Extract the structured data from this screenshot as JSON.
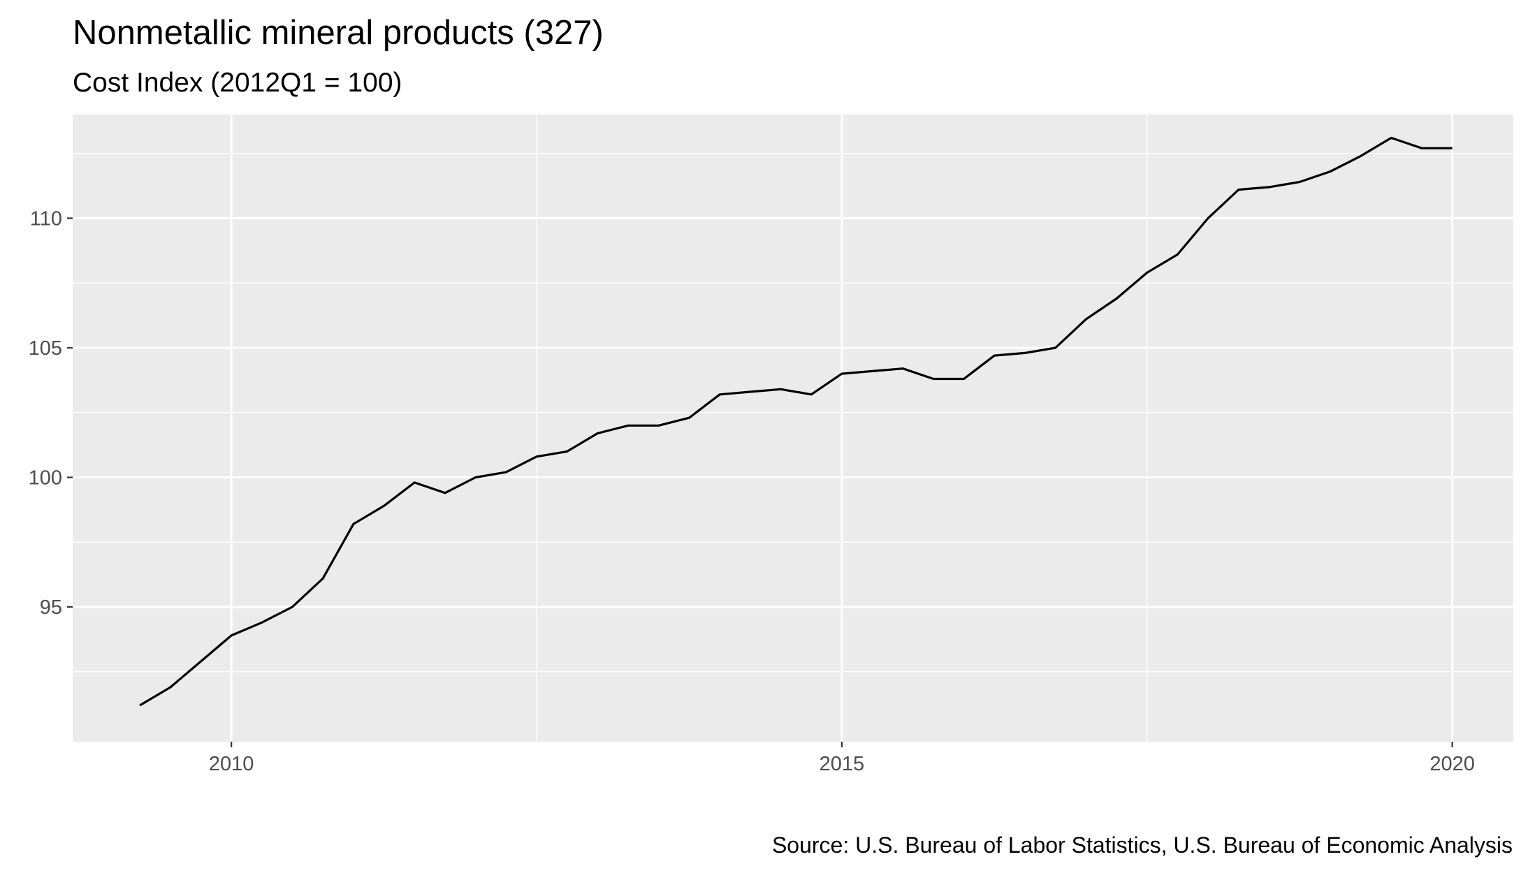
{
  "chart_data": {
    "type": "line",
    "title": "Nonmetallic mineral products (327)",
    "subtitle": "Cost Index (2012Q1 = 100)",
    "caption": "Source: U.S. Bureau of Labor Statistics, U.S. Bureau of Economic Analysis",
    "xlabel": "",
    "ylabel": "",
    "xlim": [
      2008.7,
      2020.5
    ],
    "ylim": [
      89.8,
      114.0
    ],
    "x_ticks": [
      2010,
      2015,
      2020
    ],
    "x_tick_labels": [
      "2010",
      "2015",
      "2020"
    ],
    "y_ticks": [
      95,
      100,
      105,
      110
    ],
    "y_tick_labels": [
      "95",
      "100",
      "105",
      "110"
    ],
    "grid": true,
    "legend": "none",
    "line_color": "#000000",
    "panel_color": "#ebebeb",
    "series": [
      {
        "x": [
          2009.25,
          2009.5,
          2009.75,
          2010.0,
          2010.25,
          2010.5,
          2010.75,
          2011.0,
          2011.25,
          2011.5,
          2011.75,
          2012.0,
          2012.25,
          2012.5,
          2012.75,
          2013.0,
          2013.25,
          2013.5,
          2013.75,
          2014.0,
          2014.25,
          2014.5,
          2014.75,
          2015.0,
          2015.25,
          2015.5,
          2015.75,
          2016.0,
          2016.25,
          2016.5,
          2016.75,
          2017.0,
          2017.25,
          2017.5,
          2017.75,
          2018.0,
          2018.25,
          2018.5,
          2018.75,
          2019.0,
          2019.25,
          2019.5,
          2019.75,
          2020.0
        ],
        "values": [
          91.2,
          91.9,
          92.9,
          93.9,
          94.4,
          95.0,
          96.1,
          98.2,
          98.9,
          99.8,
          99.4,
          100.0,
          100.2,
          100.8,
          101.0,
          101.7,
          102.0,
          102.0,
          102.3,
          103.2,
          103.3,
          103.4,
          103.2,
          104.0,
          104.1,
          104.2,
          103.8,
          103.8,
          104.7,
          104.8,
          105.0,
          106.1,
          106.9,
          107.9,
          108.6,
          110.0,
          111.1,
          111.2,
          111.4,
          111.8,
          112.4,
          113.1,
          112.7,
          112.7
        ]
      }
    ]
  }
}
